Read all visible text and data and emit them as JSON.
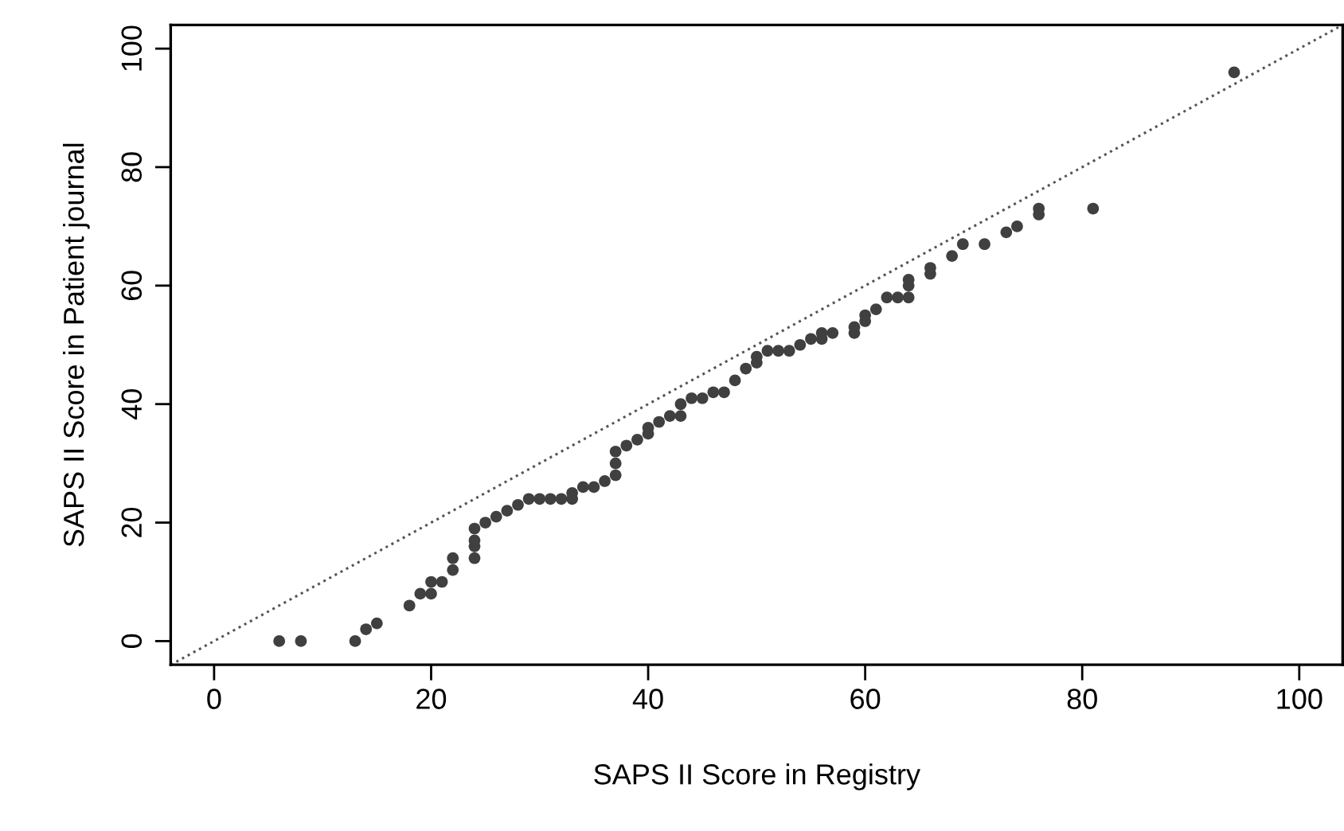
{
  "chart_data": {
    "type": "scatter",
    "xlabel": "SAPS II Score in Registry",
    "ylabel": "SAPS II Score in Patient journal",
    "x": [
      6,
      8,
      13,
      14,
      15,
      18,
      19,
      20,
      20,
      21,
      22,
      22,
      24,
      24,
      24,
      24,
      25,
      26,
      27,
      28,
      29,
      30,
      31,
      32,
      33,
      33,
      34,
      35,
      36,
      37,
      37,
      37,
      38,
      39,
      40,
      40,
      41,
      42,
      43,
      43,
      44,
      45,
      46,
      47,
      48,
      49,
      50,
      50,
      51,
      52,
      53,
      54,
      55,
      56,
      56,
      57,
      59,
      59,
      60,
      60,
      61,
      62,
      63,
      64,
      64,
      64,
      66,
      66,
      68,
      69,
      71,
      73,
      74,
      76,
      76,
      81,
      94
    ],
    "series": [
      {
        "type": "line",
        "x": [
          -4,
          104
        ],
        "values": [
          -4,
          104
        ],
        "color": "#555555",
        "line_style": "dotted",
        "marker": "none"
      },
      {
        "color": "#404040",
        "values": [
          0,
          0,
          0,
          2,
          3,
          6,
          8,
          8,
          10,
          10,
          12,
          14,
          14,
          16,
          17,
          19,
          20,
          21,
          22,
          23,
          24,
          24,
          24,
          24,
          24,
          25,
          26,
          26,
          27,
          28,
          30,
          32,
          33,
          34,
          35,
          36,
          37,
          38,
          38,
          40,
          41,
          41,
          42,
          42,
          44,
          46,
          47,
          48,
          49,
          49,
          49,
          50,
          51,
          51,
          52,
          52,
          52,
          53,
          54,
          55,
          56,
          58,
          58,
          58,
          60,
          61,
          62,
          63,
          65,
          67,
          67,
          69,
          70,
          72,
          73,
          73,
          96
        ]
      }
    ],
    "marker": "circle",
    "xlim": [
      -4,
      104
    ],
    "ylim": [
      -4,
      104
    ],
    "xticks": [
      0,
      20,
      40,
      60,
      80,
      100
    ],
    "yticks": [
      0,
      20,
      40,
      60,
      80,
      100
    ],
    "grid": false
  }
}
